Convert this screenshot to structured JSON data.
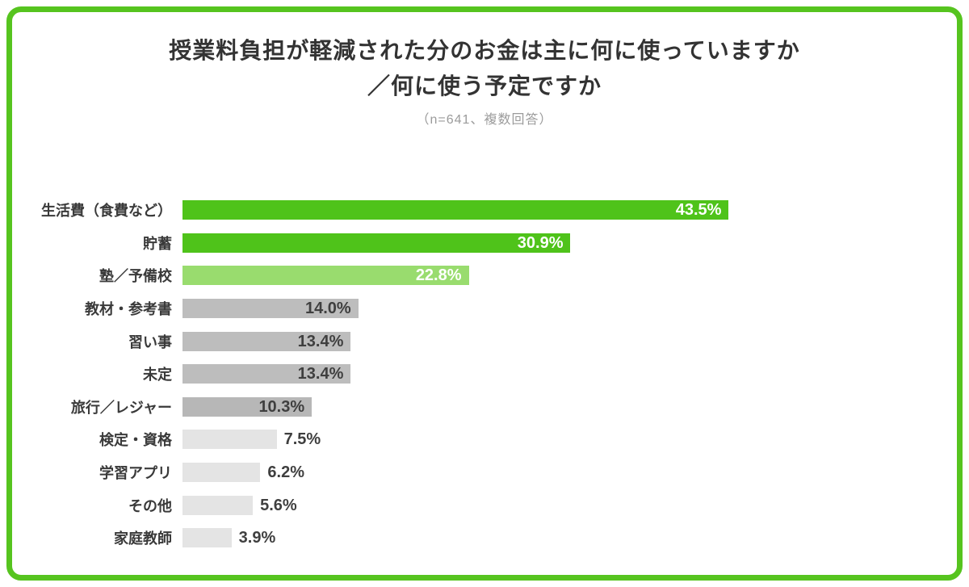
{
  "page": {
    "background": "#ffffff",
    "frame_border_color": "#56c41f"
  },
  "header": {
    "title_line1": "授業料負担が軽減された分のお金は主に何に使っていますか",
    "title_line2": "／何に使う予定ですか",
    "subtitle": "（n=641、複数回答）"
  },
  "chart_data": {
    "type": "bar",
    "orientation": "horizontal",
    "title": "授業料負担が軽減された分のお金は主に何に使っていますか／何に使う予定ですか",
    "subtitle": "（n=641、複数回答）",
    "xlabel": "",
    "ylabel": "",
    "xlim": [
      0,
      45
    ],
    "grid": false,
    "legend": false,
    "axes_hidden": true,
    "categories": [
      "生活費（食費など）",
      "貯蓄",
      "塾／予備校",
      "教材・参考書",
      "習い事",
      "未定",
      "旅行／レジャー",
      "検定・資格",
      "学習アプリ",
      "その他",
      "家庭教師"
    ],
    "values": [
      43.5,
      30.9,
      22.8,
      14.0,
      13.4,
      13.4,
      10.3,
      7.5,
      6.2,
      5.6,
      3.9
    ],
    "value_labels": [
      "43.5%",
      "30.9%",
      "22.8%",
      "14.0%",
      "13.4%",
      "13.4%",
      "10.3%",
      "7.5%",
      "6.2%",
      "5.6%",
      "3.9%"
    ],
    "bar_colors": [
      "#4fc31a",
      "#4fc31a",
      "#99dc6e",
      "#bdbdbd",
      "#bdbdbd",
      "#bdbdbd",
      "#b7b7b7",
      "#e4e4e4",
      "#e4e4e4",
      "#e4e4e4",
      "#e4e4e4"
    ],
    "value_label_placement": [
      "inside",
      "inside",
      "inside",
      "inside",
      "inside",
      "inside",
      "inside",
      "outside",
      "outside",
      "outside",
      "outside"
    ],
    "value_label_colors": [
      "#ffffff",
      "#ffffff",
      "#ffffff",
      "#3f3f3f",
      "#3f3f3f",
      "#3f3f3f",
      "#3f3f3f",
      "#3f3f3f",
      "#3f3f3f",
      "#3f3f3f",
      "#3f3f3f"
    ]
  }
}
